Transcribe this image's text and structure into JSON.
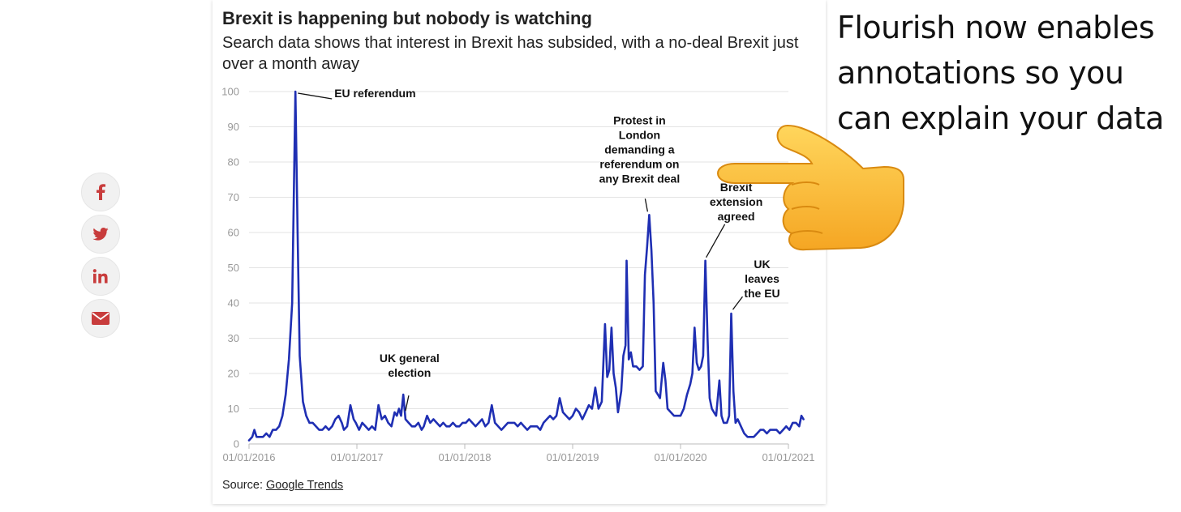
{
  "share": {
    "items": [
      {
        "name": "facebook",
        "label": "f"
      },
      {
        "name": "twitter",
        "label": "twitter"
      },
      {
        "name": "linkedin",
        "label": "in"
      },
      {
        "name": "email",
        "label": "email"
      }
    ],
    "accent": "#c83c3c"
  },
  "callout": {
    "lines": [
      "Flourish now enables",
      "annotations so you",
      "can explain your data"
    ]
  },
  "source": {
    "label": "Source: ",
    "link": "Google Trends"
  },
  "chart_data": {
    "type": "line",
    "title": "Brexit is happening but nobody is watching",
    "subtitle": "Search data shows that interest in Brexit has subsided, with a no-deal Brexit just over a month away",
    "xlabel": "",
    "ylabel": "",
    "ylim": [
      0,
      100
    ],
    "yticks": [
      0,
      10,
      20,
      30,
      40,
      50,
      60,
      70,
      80,
      90,
      100
    ],
    "xlim": [
      2016.0,
      2021.0
    ],
    "xticks": [
      {
        "value": 2016.0,
        "label": "01/01/2016"
      },
      {
        "value": 2017.0,
        "label": "01/01/2017"
      },
      {
        "value": 2018.0,
        "label": "01/01/2018"
      },
      {
        "value": 2019.0,
        "label": "01/01/2019"
      },
      {
        "value": 2020.0,
        "label": "01/01/2020"
      },
      {
        "value": 2021.0,
        "label": "01/01/2021"
      }
    ],
    "grid": true,
    "series": [
      {
        "name": "Brexit",
        "color": "#1f2fb3",
        "points": [
          [
            2016.0,
            1
          ],
          [
            2016.03,
            2
          ],
          [
            2016.05,
            4
          ],
          [
            2016.07,
            2
          ],
          [
            2016.1,
            2
          ],
          [
            2016.13,
            2
          ],
          [
            2016.16,
            3
          ],
          [
            2016.19,
            2
          ],
          [
            2016.22,
            4
          ],
          [
            2016.25,
            4
          ],
          [
            2016.28,
            5
          ],
          [
            2016.31,
            8
          ],
          [
            2016.34,
            14
          ],
          [
            2016.37,
            24
          ],
          [
            2016.4,
            40
          ],
          [
            2016.43,
            100
          ],
          [
            2016.45,
            60
          ],
          [
            2016.47,
            25
          ],
          [
            2016.5,
            12
          ],
          [
            2016.53,
            8
          ],
          [
            2016.56,
            6
          ],
          [
            2016.59,
            6
          ],
          [
            2016.62,
            5
          ],
          [
            2016.65,
            4
          ],
          [
            2016.68,
            4
          ],
          [
            2016.71,
            5
          ],
          [
            2016.74,
            4
          ],
          [
            2016.77,
            5
          ],
          [
            2016.8,
            7
          ],
          [
            2016.83,
            8
          ],
          [
            2016.86,
            6
          ],
          [
            2016.88,
            4
          ],
          [
            2016.91,
            5
          ],
          [
            2016.94,
            11
          ],
          [
            2016.97,
            7
          ],
          [
            2016.99,
            6
          ],
          [
            2017.02,
            4
          ],
          [
            2017.05,
            6
          ],
          [
            2017.08,
            5
          ],
          [
            2017.11,
            4
          ],
          [
            2017.14,
            5
          ],
          [
            2017.17,
            4
          ],
          [
            2017.2,
            11
          ],
          [
            2017.23,
            7
          ],
          [
            2017.26,
            8
          ],
          [
            2017.29,
            6
          ],
          [
            2017.32,
            5
          ],
          [
            2017.35,
            9
          ],
          [
            2017.37,
            8
          ],
          [
            2017.39,
            10
          ],
          [
            2017.41,
            8
          ],
          [
            2017.43,
            14
          ],
          [
            2017.45,
            7
          ],
          [
            2017.48,
            6
          ],
          [
            2017.51,
            5
          ],
          [
            2017.54,
            5
          ],
          [
            2017.57,
            6
          ],
          [
            2017.6,
            4
          ],
          [
            2017.62,
            5
          ],
          [
            2017.65,
            8
          ],
          [
            2017.68,
            6
          ],
          [
            2017.71,
            7
          ],
          [
            2017.74,
            6
          ],
          [
            2017.77,
            5
          ],
          [
            2017.8,
            6
          ],
          [
            2017.83,
            5
          ],
          [
            2017.86,
            5
          ],
          [
            2017.89,
            6
          ],
          [
            2017.92,
            5
          ],
          [
            2017.95,
            5
          ],
          [
            2017.98,
            6
          ],
          [
            2018.01,
            6
          ],
          [
            2018.04,
            7
          ],
          [
            2018.07,
            6
          ],
          [
            2018.1,
            5
          ],
          [
            2018.13,
            6
          ],
          [
            2018.16,
            7
          ],
          [
            2018.19,
            5
          ],
          [
            2018.22,
            6
          ],
          [
            2018.25,
            11
          ],
          [
            2018.28,
            6
          ],
          [
            2018.31,
            5
          ],
          [
            2018.34,
            4
          ],
          [
            2018.37,
            5
          ],
          [
            2018.4,
            6
          ],
          [
            2018.43,
            6
          ],
          [
            2018.46,
            6
          ],
          [
            2018.49,
            5
          ],
          [
            2018.52,
            6
          ],
          [
            2018.55,
            5
          ],
          [
            2018.58,
            4
          ],
          [
            2018.61,
            5
          ],
          [
            2018.64,
            5
          ],
          [
            2018.67,
            5
          ],
          [
            2018.7,
            4
          ],
          [
            2018.73,
            6
          ],
          [
            2018.76,
            7
          ],
          [
            2018.79,
            8
          ],
          [
            2018.82,
            7
          ],
          [
            2018.85,
            8
          ],
          [
            2018.88,
            13
          ],
          [
            2018.91,
            9
          ],
          [
            2018.94,
            8
          ],
          [
            2018.97,
            7
          ],
          [
            2019.0,
            8
          ],
          [
            2019.03,
            10
          ],
          [
            2019.06,
            9
          ],
          [
            2019.09,
            7
          ],
          [
            2019.12,
            9
          ],
          [
            2019.15,
            11
          ],
          [
            2019.18,
            10
          ],
          [
            2019.21,
            16
          ],
          [
            2019.24,
            10
          ],
          [
            2019.27,
            12
          ],
          [
            2019.3,
            34
          ],
          [
            2019.32,
            19
          ],
          [
            2019.34,
            21
          ],
          [
            2019.36,
            33
          ],
          [
            2019.38,
            20
          ],
          [
            2019.4,
            16
          ],
          [
            2019.42,
            9
          ],
          [
            2019.45,
            15
          ],
          [
            2019.47,
            25
          ],
          [
            2019.49,
            28
          ],
          [
            2019.5,
            52
          ],
          [
            2019.52,
            24
          ],
          [
            2019.54,
            26
          ],
          [
            2019.56,
            22
          ],
          [
            2019.59,
            22
          ],
          [
            2019.62,
            21
          ],
          [
            2019.65,
            22
          ],
          [
            2019.67,
            48
          ],
          [
            2019.69,
            56
          ],
          [
            2019.71,
            65
          ],
          [
            2019.73,
            55
          ],
          [
            2019.75,
            40
          ],
          [
            2019.77,
            15
          ],
          [
            2019.79,
            14
          ],
          [
            2019.81,
            13
          ],
          [
            2019.84,
            23
          ],
          [
            2019.86,
            18
          ],
          [
            2019.88,
            10
          ],
          [
            2019.91,
            9
          ],
          [
            2019.94,
            8
          ],
          [
            2019.97,
            8
          ],
          [
            2020.0,
            8
          ],
          [
            2020.03,
            10
          ],
          [
            2020.06,
            14
          ],
          [
            2020.09,
            17
          ],
          [
            2020.11,
            20
          ],
          [
            2020.13,
            33
          ],
          [
            2020.15,
            23
          ],
          [
            2020.17,
            21
          ],
          [
            2020.19,
            22
          ],
          [
            2020.21,
            25
          ],
          [
            2020.23,
            52
          ],
          [
            2020.25,
            30
          ],
          [
            2020.27,
            13
          ],
          [
            2020.29,
            10
          ],
          [
            2020.31,
            9
          ],
          [
            2020.33,
            8
          ],
          [
            2020.36,
            18
          ],
          [
            2020.38,
            8
          ],
          [
            2020.4,
            6
          ],
          [
            2020.43,
            6
          ],
          [
            2020.45,
            8
          ],
          [
            2020.47,
            37
          ],
          [
            2020.49,
            15
          ],
          [
            2020.51,
            6
          ],
          [
            2020.53,
            7
          ],
          [
            2020.56,
            5
          ],
          [
            2020.59,
            3
          ],
          [
            2020.62,
            2
          ],
          [
            2020.65,
            2
          ],
          [
            2020.68,
            2
          ],
          [
            2020.71,
            3
          ],
          [
            2020.74,
            4
          ],
          [
            2020.77,
            4
          ],
          [
            2020.8,
            3
          ],
          [
            2020.83,
            4
          ],
          [
            2020.86,
            4
          ],
          [
            2020.89,
            4
          ],
          [
            2020.92,
            3
          ],
          [
            2020.95,
            4
          ],
          [
            2020.98,
            5
          ],
          [
            2021.01,
            4
          ],
          [
            2021.04,
            6
          ],
          [
            2021.07,
            6
          ],
          [
            2021.1,
            5
          ],
          [
            2021.12,
            8
          ],
          [
            2021.14,
            7
          ]
        ]
      }
    ],
    "annotations": [
      {
        "text": [
          "EU referendum"
        ],
        "x": 2016.43,
        "y": 100
      },
      {
        "text": [
          "UK general",
          "election"
        ],
        "x": 2017.45,
        "y": 8
      },
      {
        "text": [
          "Protest in",
          "London",
          "demanding a",
          "referendum on",
          "any Brexit deal"
        ],
        "x": 2019.71,
        "y": 65
      },
      {
        "text": [
          "Brexit",
          "extension",
          "agreed"
        ],
        "x": 2020.23,
        "y": 52
      },
      {
        "text": [
          "UK",
          "leaves",
          "the EU"
        ],
        "x": 2020.47,
        "y": 37
      }
    ]
  }
}
